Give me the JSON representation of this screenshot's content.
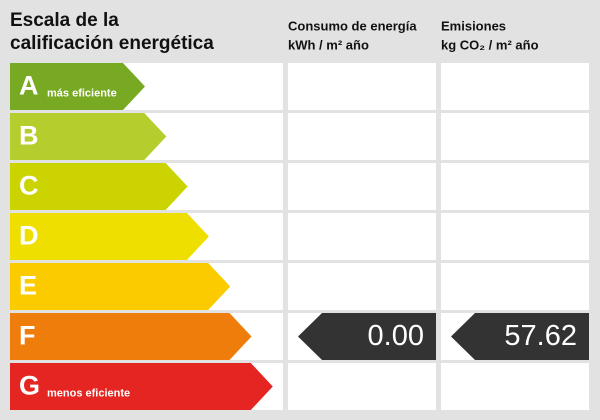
{
  "title": [
    "Escala de la",
    "calificación energética"
  ],
  "columns": [
    {
      "title": "Consumo de energía",
      "unit": "kWh / m² año"
    },
    {
      "title": "Emisiones",
      "unit": "kg CO₂ / m² año"
    }
  ],
  "rows": [
    {
      "letter": "A",
      "note": "más eficiente",
      "color": "#78a923"
    },
    {
      "letter": "B",
      "color": "#b6cd2e"
    },
    {
      "letter": "C",
      "color": "#cbd300"
    },
    {
      "letter": "D",
      "color": "#efdf00"
    },
    {
      "letter": "E",
      "color": "#fbcb00"
    },
    {
      "letter": "F",
      "color": "#ee7d0b",
      "consumo": "0.00",
      "emisiones": "57.62"
    },
    {
      "letter": "G",
      "note": "menos eficiente",
      "color": "#e42521"
    }
  ]
}
